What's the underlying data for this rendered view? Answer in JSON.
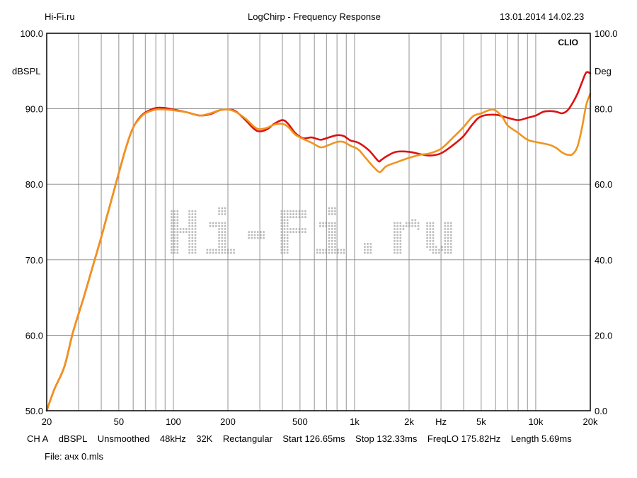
{
  "header": {
    "left": "Hi-Fi.ru",
    "center": "LogChirp - Frequency Response",
    "right": "13.01.2014 14.02.23"
  },
  "footer": {
    "channel": "CH A",
    "unit": "dBSPL",
    "smoothing": "Unsmoothed",
    "rate": "48kHz",
    "size": "32K",
    "window": "Rectangular",
    "start": "Start 126.65ms",
    "stop": "Stop 132.33ms",
    "freqlo": "FreqLO 175.82Hz",
    "length": "Length 5.69ms",
    "file": "File: ачх 0.mls"
  },
  "brand": "CLIO",
  "watermark": "Hi-Fi.ru",
  "colors": {
    "red": "#dd1111",
    "orange": "#f0931e",
    "grid": "#888888",
    "watermark": "#bdbdbd"
  },
  "chart_data": {
    "type": "line",
    "xscale": "log",
    "xlim": [
      20,
      20000
    ],
    "ylim": [
      50,
      100
    ],
    "y2lim": [
      0,
      100
    ],
    "ylabel": "dBSPL",
    "y2label": "Deg",
    "xunit_label": "Hz",
    "x_tick_labels": [
      {
        "v": 20,
        "t": "20"
      },
      {
        "v": 50,
        "t": "50"
      },
      {
        "v": 100,
        "t": "100"
      },
      {
        "v": 200,
        "t": "200"
      },
      {
        "v": 500,
        "t": "500"
      },
      {
        "v": 1000,
        "t": "1k"
      },
      {
        "v": 2000,
        "t": "2k"
      },
      {
        "v": 5000,
        "t": "5k"
      },
      {
        "v": 10000,
        "t": "10k"
      },
      {
        "v": 20000,
        "t": "20k"
      }
    ],
    "y_tick_labels": [
      "50.0",
      "60.0",
      "70.0",
      "80.0",
      "90.0",
      "100.0"
    ],
    "y2_tick_labels": [
      "0.0",
      "20.0",
      "40.0",
      "60.0",
      "80.0",
      "100.0"
    ],
    "grid": true,
    "series": [
      {
        "color": "#dd1111",
        "points": [
          [
            20,
            50
          ],
          [
            22,
            52.8
          ],
          [
            25,
            55.8
          ],
          [
            28,
            60.5
          ],
          [
            32,
            65
          ],
          [
            36,
            69.2
          ],
          [
            40,
            73
          ],
          [
            45,
            77.5
          ],
          [
            50,
            81.5
          ],
          [
            55,
            85
          ],
          [
            60,
            87.5
          ],
          [
            65,
            88.8
          ],
          [
            70,
            89.5
          ],
          [
            80,
            90.1
          ],
          [
            90,
            90.1
          ],
          [
            100,
            89.9
          ],
          [
            120,
            89.5
          ],
          [
            140,
            89.1
          ],
          [
            160,
            89.3
          ],
          [
            180,
            89.8
          ],
          [
            200,
            89.9
          ],
          [
            220,
            89.7
          ],
          [
            250,
            88.5
          ],
          [
            280,
            87.3
          ],
          [
            300,
            87.0
          ],
          [
            330,
            87.3
          ],
          [
            360,
            88.0
          ],
          [
            400,
            88.5
          ],
          [
            430,
            88.0
          ],
          [
            470,
            86.8
          ],
          [
            520,
            86.1
          ],
          [
            580,
            86.2
          ],
          [
            650,
            85.9
          ],
          [
            720,
            86.2
          ],
          [
            800,
            86.5
          ],
          [
            870,
            86.4
          ],
          [
            950,
            85.8
          ],
          [
            1050,
            85.5
          ],
          [
            1200,
            84.5
          ],
          [
            1350,
            83.1
          ],
          [
            1400,
            83.2
          ],
          [
            1500,
            83.7
          ],
          [
            1700,
            84.3
          ],
          [
            2000,
            84.3
          ],
          [
            2300,
            84.0
          ],
          [
            2600,
            83.8
          ],
          [
            3000,
            84.1
          ],
          [
            3500,
            85.2
          ],
          [
            4000,
            86.4
          ],
          [
            4500,
            88.0
          ],
          [
            5000,
            89.0
          ],
          [
            6000,
            89.2
          ],
          [
            7000,
            88.8
          ],
          [
            8000,
            88.5
          ],
          [
            9000,
            88.8
          ],
          [
            10000,
            89.1
          ],
          [
            11000,
            89.6
          ],
          [
            12000,
            89.7
          ],
          [
            13000,
            89.6
          ],
          [
            14000,
            89.4
          ],
          [
            15000,
            89.8
          ],
          [
            16000,
            90.8
          ],
          [
            17000,
            92.0
          ],
          [
            18000,
            93.5
          ],
          [
            19000,
            94.8
          ],
          [
            20000,
            94.7
          ]
        ]
      },
      {
        "color": "#f0931e",
        "points": [
          [
            20,
            50
          ],
          [
            22,
            52.8
          ],
          [
            25,
            55.8
          ],
          [
            28,
            60.5
          ],
          [
            32,
            65
          ],
          [
            36,
            69.2
          ],
          [
            40,
            73
          ],
          [
            45,
            77.5
          ],
          [
            50,
            81.5
          ],
          [
            55,
            85
          ],
          [
            60,
            87.5
          ],
          [
            65,
            88.7
          ],
          [
            70,
            89.4
          ],
          [
            80,
            89.9
          ],
          [
            90,
            89.9
          ],
          [
            100,
            89.8
          ],
          [
            120,
            89.5
          ],
          [
            140,
            89.1
          ],
          [
            160,
            89.4
          ],
          [
            180,
            89.8
          ],
          [
            200,
            89.9
          ],
          [
            220,
            89.6
          ],
          [
            250,
            88.7
          ],
          [
            280,
            87.6
          ],
          [
            300,
            87.3
          ],
          [
            330,
            87.5
          ],
          [
            360,
            87.9
          ],
          [
            400,
            88.0
          ],
          [
            430,
            87.6
          ],
          [
            470,
            86.6
          ],
          [
            520,
            86.0
          ],
          [
            580,
            85.5
          ],
          [
            650,
            84.9
          ],
          [
            720,
            85.2
          ],
          [
            800,
            85.6
          ],
          [
            870,
            85.6
          ],
          [
            950,
            85.1
          ],
          [
            1050,
            84.6
          ],
          [
            1150,
            83.5
          ],
          [
            1250,
            82.5
          ],
          [
            1350,
            81.7
          ],
          [
            1400,
            81.7
          ],
          [
            1500,
            82.4
          ],
          [
            1700,
            82.9
          ],
          [
            2000,
            83.5
          ],
          [
            2300,
            83.9
          ],
          [
            2600,
            84.1
          ],
          [
            3000,
            84.7
          ],
          [
            3500,
            86.2
          ],
          [
            4000,
            87.6
          ],
          [
            4500,
            89.0
          ],
          [
            5000,
            89.4
          ],
          [
            5800,
            89.9
          ],
          [
            6500,
            89.0
          ],
          [
            7000,
            87.8
          ],
          [
            8000,
            86.8
          ],
          [
            9000,
            85.9
          ],
          [
            10000,
            85.6
          ],
          [
            11000,
            85.4
          ],
          [
            12000,
            85.2
          ],
          [
            13000,
            84.8
          ],
          [
            14000,
            84.2
          ],
          [
            15000,
            83.9
          ],
          [
            16000,
            84.0
          ],
          [
            17000,
            85.0
          ],
          [
            18000,
            87.5
          ],
          [
            19000,
            90.5
          ],
          [
            20000,
            92.0
          ]
        ]
      }
    ]
  }
}
